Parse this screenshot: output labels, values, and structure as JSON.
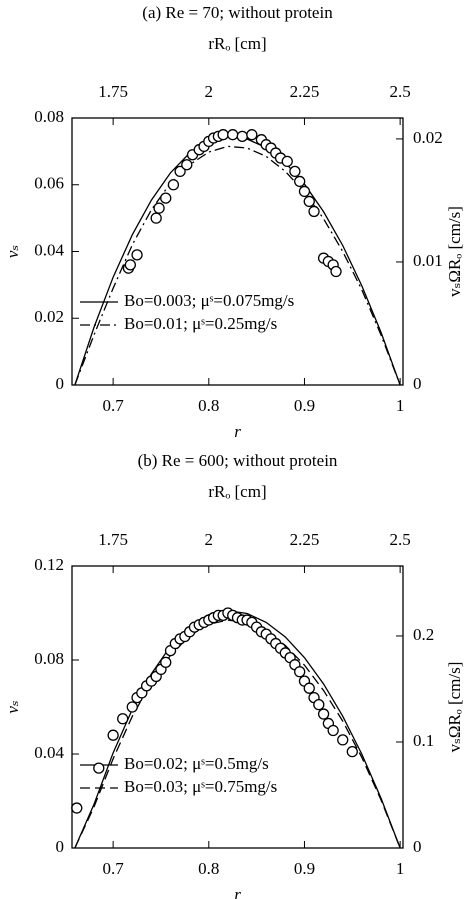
{
  "chart_data": [
    {
      "type": "line",
      "title": "(a) Re = 70; without protein",
      "xlabel": "r",
      "ylabel": "vₛ",
      "x2label": "rRₒ [cm]",
      "y2label": "vₛΩRₒ [cm/s]",
      "xlim": [
        0.657,
        1.003
      ],
      "xticks": [
        0.7,
        0.8,
        0.9,
        1
      ],
      "x2lim": [
        1.6425,
        2.5075
      ],
      "x2ticks": [
        1.75,
        2,
        2.25,
        2.5
      ],
      "ylim": [
        0,
        0.08
      ],
      "yticks": [
        0,
        0.02,
        0.04,
        0.06,
        0.08
      ],
      "y2lim": [
        0,
        0.0217
      ],
      "y2ticks": [
        0,
        0.01,
        0.02
      ],
      "legend": "lower left",
      "series": [
        {
          "name": "Bo=0.003; μˢ=0.075mg/s",
          "style": "solid",
          "color": "#000000",
          "x": [
            0.66,
            0.68,
            0.7,
            0.72,
            0.74,
            0.76,
            0.78,
            0.8,
            0.82,
            0.84,
            0.86,
            0.88,
            0.9,
            0.92,
            0.94,
            0.96,
            0.98,
            1.0
          ],
          "values": [
            0,
            0.0173,
            0.0323,
            0.045,
            0.0554,
            0.0636,
            0.0695,
            0.0731,
            0.0745,
            0.0737,
            0.0711,
            0.0666,
            0.0602,
            0.0519,
            0.0418,
            0.0297,
            0.0158,
            0
          ]
        },
        {
          "name": "Bo=0.01; μˢ=0.25mg/s",
          "style": "dashdot",
          "color": "#000000",
          "x": [
            0.66,
            0.68,
            0.7,
            0.72,
            0.74,
            0.76,
            0.78,
            0.8,
            0.82,
            0.84,
            0.86,
            0.88,
            0.9,
            0.92,
            0.94,
            0.96,
            0.98,
            1.0
          ],
          "values": [
            0,
            0.015,
            0.029,
            0.042,
            0.0525,
            0.0605,
            0.066,
            0.0698,
            0.0715,
            0.071,
            0.0685,
            0.064,
            0.0578,
            0.0498,
            0.04,
            0.0285,
            0.015,
            0
          ]
        },
        {
          "style": "markers",
          "color": "#000000",
          "x": [
            0.716,
            0.718,
            0.725,
            0.745,
            0.748,
            0.755,
            0.763,
            0.77,
            0.777,
            0.783,
            0.79,
            0.795,
            0.8,
            0.805,
            0.81,
            0.815,
            0.825,
            0.835,
            0.845,
            0.855,
            0.86,
            0.865,
            0.87,
            0.875,
            0.882,
            0.89,
            0.895,
            0.9,
            0.905,
            0.91,
            0.92,
            0.925,
            0.93,
            0.933
          ],
          "values": [
            0.035,
            0.036,
            0.039,
            0.05,
            0.053,
            0.056,
            0.06,
            0.064,
            0.066,
            0.069,
            0.0705,
            0.0715,
            0.073,
            0.074,
            0.0745,
            0.075,
            0.075,
            0.0745,
            0.075,
            0.0735,
            0.072,
            0.071,
            0.0695,
            0.068,
            0.067,
            0.064,
            0.061,
            0.058,
            0.055,
            0.052,
            0.038,
            0.037,
            0.036,
            0.034
          ]
        }
      ]
    },
    {
      "type": "line",
      "title": "(b) Re = 600; without protein",
      "xlabel": "r",
      "ylabel": "vₛ",
      "x2label": "rRₒ [cm]",
      "y2label": "vₛΩRₒ [cm/s]",
      "xlim": [
        0.657,
        1.003
      ],
      "xticks": [
        0.7,
        0.8,
        0.9,
        1
      ],
      "x2lim": [
        1.6425,
        2.5075
      ],
      "x2ticks": [
        1.75,
        2,
        2.25,
        2.5
      ],
      "ylim": [
        0,
        0.12
      ],
      "yticks": [
        0,
        0.04,
        0.08,
        0.12
      ],
      "y2lim": [
        0,
        0.266
      ],
      "y2ticks": [
        0,
        0.1,
        0.2
      ],
      "legend": "lower left",
      "series": [
        {
          "name": "Bo=0.02; μˢ=0.5mg/s",
          "style": "solid",
          "color": "#000000",
          "x": [
            0.66,
            0.68,
            0.7,
            0.72,
            0.74,
            0.76,
            0.78,
            0.8,
            0.82,
            0.84,
            0.86,
            0.88,
            0.9,
            0.92,
            0.94,
            0.96,
            0.98,
            1.0
          ],
          "values": [
            0,
            0.0186,
            0.0405,
            0.059,
            0.0741,
            0.0859,
            0.0943,
            0.0993,
            0.101,
            0.0998,
            0.096,
            0.0898,
            0.081,
            0.0698,
            0.0561,
            0.0399,
            0.0212,
            0
          ]
        },
        {
          "name": "Bo=0.03; μˢ=0.75mg/s",
          "style": "dashed",
          "color": "#000000",
          "x": [
            0.66,
            0.68,
            0.7,
            0.72,
            0.74,
            0.76,
            0.78,
            0.8,
            0.82,
            0.84,
            0.86,
            0.88,
            0.9,
            0.92,
            0.94,
            0.96,
            0.98,
            1.0
          ],
          "values": [
            0,
            0.0175,
            0.038,
            0.056,
            0.0705,
            0.082,
            0.0903,
            0.0952,
            0.097,
            0.0958,
            0.0922,
            0.0862,
            0.0778,
            0.067,
            0.054,
            0.0385,
            0.0205,
            0
          ]
        },
        {
          "style": "markers",
          "color": "#000000",
          "x": [
            0.662,
            0.685,
            0.7,
            0.71,
            0.72,
            0.725,
            0.73,
            0.735,
            0.74,
            0.745,
            0.75,
            0.755,
            0.76,
            0.765,
            0.77,
            0.775,
            0.78,
            0.785,
            0.79,
            0.795,
            0.8,
            0.805,
            0.81,
            0.815,
            0.82,
            0.825,
            0.83,
            0.835,
            0.84,
            0.845,
            0.85,
            0.855,
            0.86,
            0.865,
            0.87,
            0.875,
            0.88,
            0.885,
            0.89,
            0.895,
            0.9,
            0.905,
            0.91,
            0.915,
            0.92,
            0.925,
            0.93,
            0.94,
            0.95
          ],
          "values": [
            0.017,
            0.034,
            0.048,
            0.055,
            0.06,
            0.064,
            0.066,
            0.069,
            0.071,
            0.073,
            0.076,
            0.079,
            0.084,
            0.087,
            0.089,
            0.09,
            0.092,
            0.094,
            0.095,
            0.096,
            0.097,
            0.098,
            0.099,
            0.099,
            0.1,
            0.099,
            0.098,
            0.097,
            0.097,
            0.096,
            0.094,
            0.092,
            0.091,
            0.089,
            0.087,
            0.085,
            0.083,
            0.081,
            0.078,
            0.075,
            0.071,
            0.068,
            0.064,
            0.061,
            0.057,
            0.053,
            0.05,
            0.046,
            0.041
          ]
        }
      ]
    }
  ]
}
